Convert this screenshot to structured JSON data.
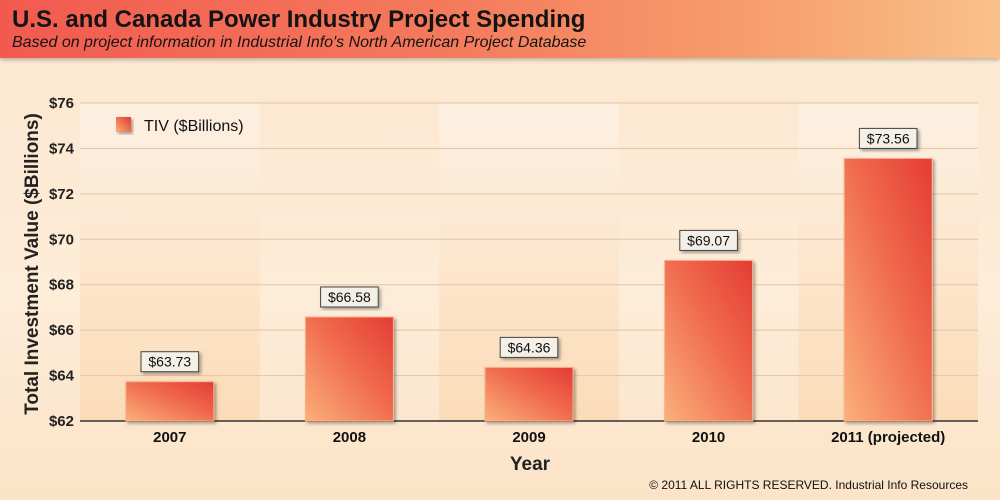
{
  "header": {
    "title": "U.S. and Canada Power Industry Project Spending",
    "subtitle": "Based on project information in Industrial Info's North American Project Database"
  },
  "footer": {
    "copyright": "© 2011 ALL RIGHTS RESERVED. Industrial Info Resources"
  },
  "colors": {
    "bar_dark": "#e8463c",
    "bar_light": "#fbb07a",
    "header_start": "#f25a50",
    "header_end": "#f9c28a"
  },
  "chart_data": {
    "type": "bar",
    "title": "U.S. and Canada Power Industry Project Spending",
    "subtitle": "Based on project information in Industrial Info's North American Project Database",
    "xlabel": "Year",
    "ylabel": "Total Investment Value ($Billions)",
    "categories": [
      "2007",
      "2008",
      "2009",
      "2010",
      "2011 (projected)"
    ],
    "series": [
      {
        "name": "TIV ($Billions)",
        "values": [
          63.73,
          66.58,
          64.36,
          69.07,
          73.56
        ],
        "labels": [
          "$63.73",
          "$66.58",
          "$64.36",
          "$69.07",
          "$73.56"
        ]
      }
    ],
    "ylim": [
      62,
      76
    ],
    "yticks": [
      62,
      64,
      66,
      68,
      70,
      72,
      74,
      76
    ],
    "ytick_labels": [
      "$62",
      "$64",
      "$66",
      "$68",
      "$70",
      "$72",
      "$74",
      "$76"
    ],
    "grid": true,
    "legend_position": "top-left"
  }
}
